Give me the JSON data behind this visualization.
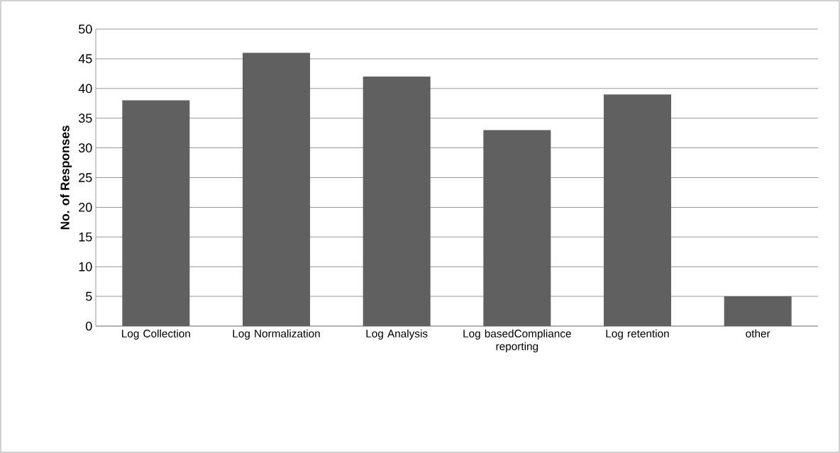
{
  "chart_data": {
    "type": "bar",
    "ylabel": "No. of Responses",
    "categories": [
      "Log Collection",
      "Log Normalization",
      "Log Analysis",
      "Log basedCompliance reporting",
      "Log retention",
      "other"
    ],
    "values": [
      38,
      46,
      42,
      33,
      39,
      5
    ],
    "color": "#606060",
    "ylim": [
      0,
      50
    ],
    "yticks": [
      0,
      5,
      10,
      15,
      20,
      25,
      30,
      35,
      40,
      45,
      50
    ],
    "grid": "y"
  }
}
